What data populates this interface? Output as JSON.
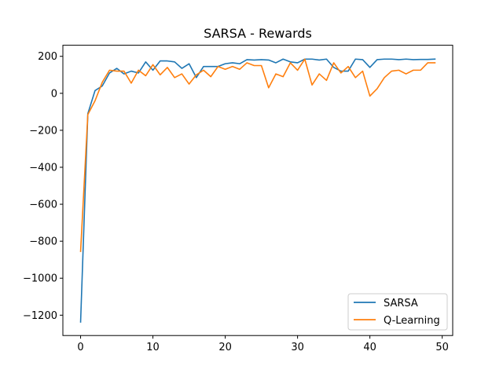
{
  "chart_data": {
    "type": "line",
    "title": "SARSA - Rewards",
    "xlabel": "",
    "ylabel": "",
    "xlim": [
      -2.45,
      51.45
    ],
    "ylim": [
      -1310,
      260
    ],
    "xticks": [
      0,
      10,
      20,
      30,
      40,
      50
    ],
    "xtick_labels": [
      "0",
      "10",
      "20",
      "30",
      "40",
      "50"
    ],
    "yticks": [
      -1200,
      -1000,
      -800,
      -600,
      -400,
      -200,
      0,
      200
    ],
    "ytick_labels": [
      "−1200",
      "−1000",
      "−800",
      "−600",
      "−400",
      "−200",
      "0",
      "200"
    ],
    "grid": false,
    "legend": {
      "position": "lower-right"
    },
    "series": [
      {
        "name": "SARSA",
        "color": "#1f77b4",
        "x": [
          0,
          1,
          2,
          3,
          4,
          5,
          6,
          7,
          8,
          9,
          10,
          11,
          12,
          13,
          14,
          15,
          16,
          17,
          18,
          19,
          20,
          21,
          22,
          23,
          24,
          25,
          26,
          27,
          28,
          29,
          30,
          31,
          32,
          33,
          34,
          35,
          36,
          37,
          38,
          39,
          40,
          41,
          42,
          43,
          44,
          45,
          46,
          47,
          48,
          49
        ],
        "values": [
          -1237,
          -110,
          15,
          40,
          110,
          135,
          105,
          120,
          110,
          170,
          125,
          175,
          175,
          170,
          135,
          160,
          85,
          145,
          145,
          145,
          160,
          165,
          160,
          182,
          180,
          182,
          180,
          165,
          185,
          170,
          165,
          185,
          185,
          180,
          185,
          140,
          120,
          120,
          185,
          182,
          140,
          182,
          185,
          185,
          182,
          185,
          182,
          183,
          183,
          185
        ]
      },
      {
        "name": "Q-Learning",
        "color": "#ff7f0e",
        "x": [
          0,
          1,
          2,
          3,
          4,
          5,
          6,
          7,
          8,
          9,
          10,
          11,
          12,
          13,
          14,
          15,
          16,
          17,
          18,
          19,
          20,
          21,
          22,
          23,
          24,
          25,
          26,
          27,
          28,
          29,
          30,
          31,
          32,
          33,
          34,
          35,
          36,
          37,
          38,
          39,
          40,
          41,
          42,
          43,
          44,
          45,
          46,
          47,
          48,
          49
        ],
        "values": [
          -855,
          -115,
          -40,
          60,
          125,
          120,
          120,
          55,
          125,
          95,
          155,
          100,
          140,
          85,
          105,
          50,
          100,
          125,
          90,
          145,
          130,
          145,
          130,
          165,
          150,
          150,
          30,
          105,
          90,
          165,
          125,
          185,
          45,
          105,
          70,
          165,
          110,
          145,
          85,
          120,
          -15,
          25,
          85,
          120,
          125,
          105,
          125,
          125,
          165,
          165
        ]
      }
    ]
  }
}
